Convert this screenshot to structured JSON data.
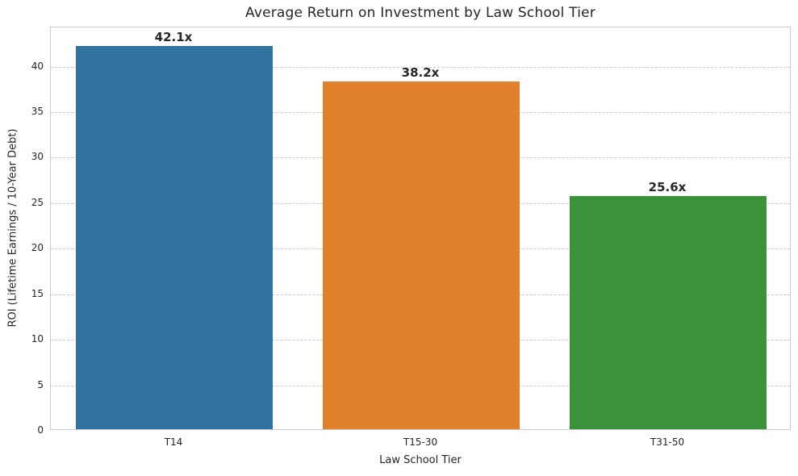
{
  "chart_data": {
    "type": "bar",
    "title": "Average Return on Investment by Law School Tier",
    "xlabel": "Law School Tier",
    "ylabel": "ROI (Lifetime Earnings / 10-Year Debt)",
    "categories": [
      "T14",
      "T15-30",
      "T31-50"
    ],
    "values": [
      42.1,
      38.2,
      25.6
    ],
    "value_labels": [
      "42.1x",
      "38.2x",
      "25.6x"
    ],
    "bar_colors": [
      "#3274A1",
      "#E1812C",
      "#3A923A"
    ],
    "ylim": [
      0,
      44.3
    ],
    "yticks": [
      0,
      5,
      10,
      15,
      20,
      25,
      30,
      35,
      40
    ],
    "grid": "horizontal-dashed",
    "legend_position": "none"
  },
  "style": {
    "grid_color": "#cccccc",
    "spine_color": "#cccccc",
    "text_color": "#262626",
    "background_color": "#ffffff"
  }
}
